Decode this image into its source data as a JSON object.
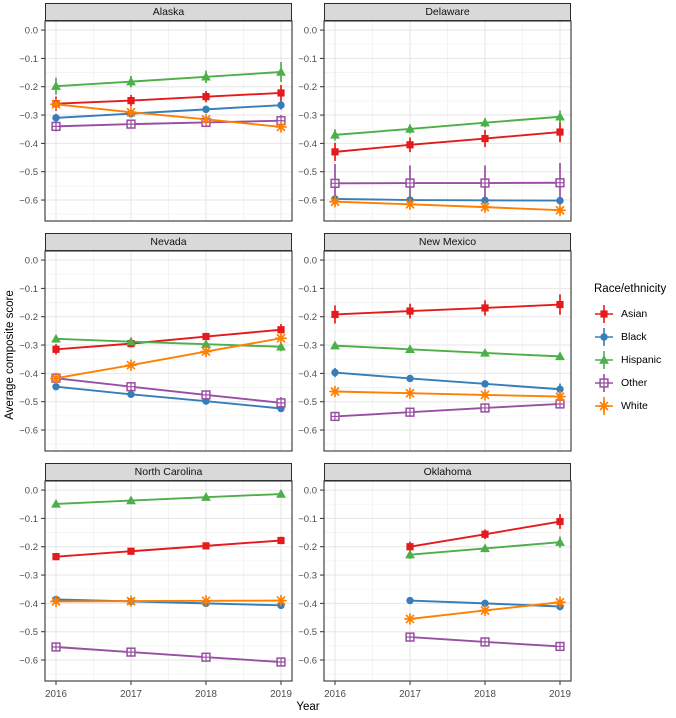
{
  "figure": {
    "y_axis_title": "Average composite score",
    "x_axis_title": "Year"
  },
  "legend": {
    "title": "Race/ethnicity",
    "entries": [
      {
        "label": "Asian"
      },
      {
        "label": "Black"
      },
      {
        "label": "Hispanic"
      },
      {
        "label": "Other"
      },
      {
        "label": "White"
      }
    ]
  },
  "chart_data": {
    "type": "line",
    "x": [
      2016,
      2017,
      2018,
      2019
    ],
    "x_tick_labels": [
      "2016",
      "2017",
      "2018",
      "2019"
    ],
    "x_minor": [
      2016.5,
      2017.5,
      2018.5
    ],
    "xlabel": "Year",
    "ylabel": "Average composite score",
    "ylim": [
      -0.674,
      0.032
    ],
    "y_major": [
      0,
      -0.1,
      -0.2,
      -0.3,
      -0.4,
      -0.5,
      -0.6
    ],
    "y_minor": [
      -0.05,
      -0.15,
      -0.25,
      -0.35,
      -0.45,
      -0.55,
      -0.65
    ],
    "y_tick_labels": [
      "0.0",
      "−0.1",
      "−0.2",
      "−0.3",
      "−0.4",
      "−0.5",
      "−0.6"
    ],
    "grid": true,
    "legend_position": "right",
    "error_bars": true,
    "series_styles": {
      "Asian": {
        "color": "#E41A1C",
        "marker": "filled-square"
      },
      "Black": {
        "color": "#377EB8",
        "marker": "filled-circle"
      },
      "Hispanic": {
        "color": "#4DAF4A",
        "marker": "filled-triangle"
      },
      "Other": {
        "color": "#984EA3",
        "marker": "open-square-plus"
      },
      "White": {
        "color": "#FF7F00",
        "marker": "asterisk"
      }
    },
    "panels": [
      {
        "title": "Alaska",
        "series": [
          {
            "name": "Asian",
            "values": [
              -0.26,
              -0.249,
              -0.235,
              -0.222
            ],
            "errors": [
              0.025,
              0.02,
              0.02,
              0.028
            ]
          },
          {
            "name": "Black",
            "values": [
              -0.31,
              -0.295,
              -0.28,
              -0.265
            ],
            "errors": [
              0.014,
              0.012,
              0.012,
              0.016
            ]
          },
          {
            "name": "Hispanic",
            "values": [
              -0.198,
              -0.182,
              -0.165,
              -0.148
            ],
            "errors": [
              0.03,
              0.02,
              0.022,
              0.035
            ]
          },
          {
            "name": "Other",
            "values": [
              -0.34,
              -0.332,
              -0.326,
              -0.32
            ],
            "errors": [
              0.018,
              0.014,
              0.014,
              0.02
            ]
          },
          {
            "name": "White",
            "values": [
              -0.262,
              -0.29,
              -0.315,
              -0.342
            ],
            "errors": [
              0.008,
              0.007,
              0.007,
              0.01
            ]
          }
        ]
      },
      {
        "title": "Delaware",
        "series": [
          {
            "name": "Asian",
            "values": [
              -0.43,
              -0.405,
              -0.383,
              -0.36
            ],
            "errors": [
              0.032,
              0.026,
              0.03,
              0.036
            ]
          },
          {
            "name": "Black",
            "values": [
              -0.596,
              -0.6,
              -0.601,
              -0.602
            ],
            "errors": [
              0.012,
              0.01,
              0.01,
              0.014
            ]
          },
          {
            "name": "Hispanic",
            "values": [
              -0.37,
              -0.349,
              -0.327,
              -0.306
            ],
            "errors": [
              0.02,
              0.016,
              0.016,
              0.022
            ]
          },
          {
            "name": "Other",
            "values": [
              -0.541,
              -0.54,
              -0.54,
              -0.539
            ],
            "errors": [
              0.068,
              0.062,
              0.062,
              0.07
            ]
          },
          {
            "name": "White",
            "values": [
              -0.606,
              -0.615,
              -0.625,
              -0.636
            ],
            "errors": [
              0.01,
              0.008,
              0.008,
              0.012
            ]
          }
        ]
      },
      {
        "title": "Nevada",
        "series": [
          {
            "name": "Asian",
            "values": [
              -0.315,
              -0.295,
              -0.27,
              -0.246
            ],
            "errors": [
              0.018,
              0.013,
              0.013,
              0.02
            ]
          },
          {
            "name": "Black",
            "values": [
              -0.447,
              -0.474,
              -0.498,
              -0.524
            ],
            "errors": [
              0.01,
              0.008,
              0.008,
              0.012
            ]
          },
          {
            "name": "Hispanic",
            "values": [
              -0.278,
              -0.288,
              -0.297,
              -0.306
            ],
            "errors": [
              0.014,
              0.01,
              0.011,
              0.016
            ]
          },
          {
            "name": "Other",
            "values": [
              -0.417,
              -0.447,
              -0.476,
              -0.504
            ],
            "errors": [
              0.016,
              0.012,
              0.012,
              0.02
            ]
          },
          {
            "name": "White",
            "values": [
              -0.417,
              -0.371,
              -0.323,
              -0.276
            ],
            "errors": [
              0.007,
              0.006,
              0.006,
              0.008
            ]
          }
        ]
      },
      {
        "title": "New Mexico",
        "series": [
          {
            "name": "Asian",
            "values": [
              -0.192,
              -0.18,
              -0.169,
              -0.157
            ],
            "errors": [
              0.032,
              0.026,
              0.027,
              0.036
            ]
          },
          {
            "name": "Black",
            "values": [
              -0.397,
              -0.418,
              -0.437,
              -0.456
            ],
            "errors": [
              0.016,
              0.012,
              0.013,
              0.02
            ]
          },
          {
            "name": "Hispanic",
            "values": [
              -0.302,
              -0.315,
              -0.328,
              -0.34
            ],
            "errors": [
              0.012,
              0.01,
              0.01,
              0.013
            ]
          },
          {
            "name": "Other",
            "values": [
              -0.552,
              -0.537,
              -0.522,
              -0.508
            ],
            "errors": [
              0.016,
              0.012,
              0.012,
              0.016
            ]
          },
          {
            "name": "White",
            "values": [
              -0.464,
              -0.47,
              -0.476,
              -0.482
            ],
            "errors": [
              0.007,
              0.006,
              0.006,
              0.008
            ]
          }
        ]
      },
      {
        "title": "North Carolina",
        "series": [
          {
            "name": "Asian",
            "values": [
              -0.235,
              -0.216,
              -0.197,
              -0.178
            ],
            "errors": [
              0.012,
              0.01,
              0.01,
              0.013
            ]
          },
          {
            "name": "Black",
            "values": [
              -0.386,
              -0.393,
              -0.4,
              -0.407
            ],
            "errors": [
              0.009,
              0.008,
              0.008,
              0.01
            ]
          },
          {
            "name": "Hispanic",
            "values": [
              -0.049,
              -0.037,
              -0.025,
              -0.014
            ],
            "errors": [
              0.012,
              0.009,
              0.009,
              0.011
            ]
          },
          {
            "name": "Other",
            "values": [
              -0.554,
              -0.572,
              -0.59,
              -0.607
            ],
            "errors": [
              0.011,
              0.009,
              0.009,
              0.012
            ]
          },
          {
            "name": "White",
            "values": [
              -0.393,
              -0.392,
              -0.391,
              -0.39
            ],
            "errors": [
              0.007,
              0.006,
              0.006,
              0.008
            ]
          }
        ]
      },
      {
        "title": "Oklahoma",
        "series": [
          {
            "name": "Asian",
            "values": [
              null,
              -0.2,
              -0.156,
              -0.111
            ],
            "errors": [
              null,
              0.018,
              0.017,
              0.026
            ]
          },
          {
            "name": "Black",
            "values": [
              null,
              -0.39,
              -0.4,
              -0.411
            ],
            "errors": [
              null,
              0.01,
              0.01,
              0.013
            ]
          },
          {
            "name": "Hispanic",
            "values": [
              null,
              -0.228,
              -0.206,
              -0.184
            ],
            "errors": [
              null,
              0.015,
              0.013,
              0.02
            ]
          },
          {
            "name": "Other",
            "values": [
              null,
              -0.519,
              -0.536,
              -0.552
            ],
            "errors": [
              null,
              0.012,
              0.012,
              0.016
            ]
          },
          {
            "name": "White",
            "values": [
              null,
              -0.455,
              -0.425,
              -0.396
            ],
            "errors": [
              null,
              0.007,
              0.007,
              0.009
            ]
          }
        ]
      }
    ]
  }
}
